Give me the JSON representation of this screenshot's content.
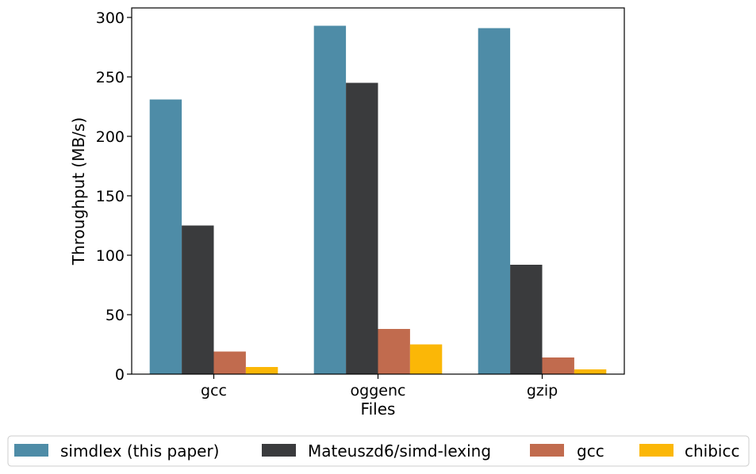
{
  "chart_data": {
    "type": "bar",
    "title": "",
    "xlabel": "Files",
    "ylabel": "Throughput (MB/s)",
    "categories": [
      "gcc",
      "oggenc",
      "gzip"
    ],
    "series": [
      {
        "name": "simdlex (this paper)",
        "color": "#4e8ca7",
        "values": [
          231,
          293,
          291
        ]
      },
      {
        "name": "Mateuszd6/simd-lexing",
        "color": "#3a3b3d",
        "values": [
          125,
          245,
          92
        ]
      },
      {
        "name": "gcc",
        "color": "#c16b4e",
        "values": [
          19,
          38,
          14
        ]
      },
      {
        "name": "chibicc",
        "color": "#fbb707",
        "values": [
          6,
          25,
          4
        ]
      }
    ],
    "ylim": [
      0,
      308
    ],
    "yticks": [
      0,
      50,
      100,
      150,
      200,
      250,
      300
    ],
    "grid": false,
    "legend_position": "bottom"
  }
}
